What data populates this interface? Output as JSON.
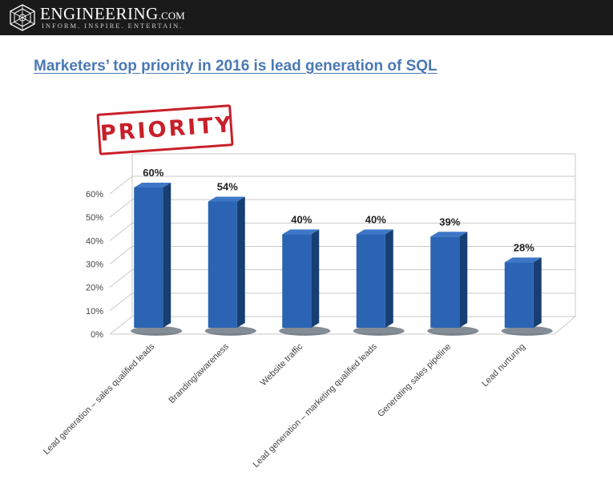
{
  "header": {
    "brand": "ENGINEERING",
    "brand_suffix": ".COM",
    "tagline": "INFORM. INSPIRE. ENTERTAIN.",
    "logo_icon": "geometric-crest-icon"
  },
  "slide": {
    "title": "Marketers’ top priority in 2016 is lead generation of SQL",
    "stamp_text": "PRIORITY",
    "stamp_color": "#c8202a",
    "title_color": "#4a79b4"
  },
  "chart_data": {
    "type": "bar",
    "categories": [
      "Lead generation – sales qualified leads",
      "Branding/awareness",
      "Website traffic",
      "Lead generation – marketing qualified leads",
      "Generating sales pipeline",
      "Lead nurturing"
    ],
    "values": [
      60,
      54,
      40,
      40,
      39,
      28
    ],
    "data_labels": [
      "60%",
      "54%",
      "40%",
      "40%",
      "39%",
      "28%"
    ],
    "yticks": [
      "0%",
      "10%",
      "20%",
      "30%",
      "40%",
      "50%",
      "60%"
    ],
    "ylim": [
      0,
      60
    ],
    "grid": true,
    "bar_color": "#2a64b3",
    "title": "",
    "xlabel": "",
    "ylabel": ""
  }
}
